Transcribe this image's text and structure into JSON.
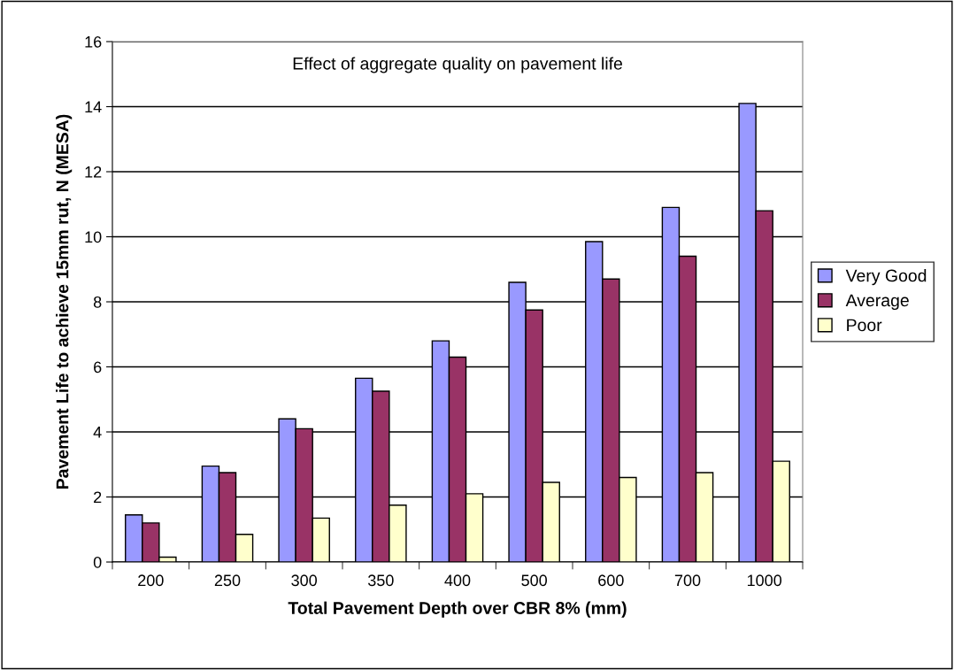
{
  "chart_data": {
    "type": "bar",
    "title": "Effect of aggregate quality on pavement life",
    "xlabel": "Total Pavement Depth over CBR 8% (mm)",
    "ylabel": "Pavement Life to achieve 15mm rut, N (MESA)",
    "categories": [
      "200",
      "250",
      "300",
      "350",
      "400",
      "500",
      "600",
      "700",
      "1000"
    ],
    "series": [
      {
        "name": "Very Good",
        "color": "#9999ff",
        "values": [
          1.45,
          2.95,
          4.4,
          5.65,
          6.8,
          8.6,
          9.85,
          10.9,
          14.1
        ]
      },
      {
        "name": "Average",
        "color": "#993366",
        "values": [
          1.2,
          2.75,
          4.1,
          5.25,
          6.3,
          7.75,
          8.7,
          9.4,
          10.8
        ]
      },
      {
        "name": "Poor",
        "color": "#ffffcc",
        "values": [
          0.15,
          0.85,
          1.35,
          1.75,
          2.1,
          2.45,
          2.6,
          2.75,
          3.1
        ]
      }
    ],
    "ylim": [
      0,
      16
    ],
    "yticks": [
      0,
      2,
      4,
      6,
      8,
      10,
      12,
      14,
      16
    ],
    "grid": "y",
    "legend": "right"
  }
}
